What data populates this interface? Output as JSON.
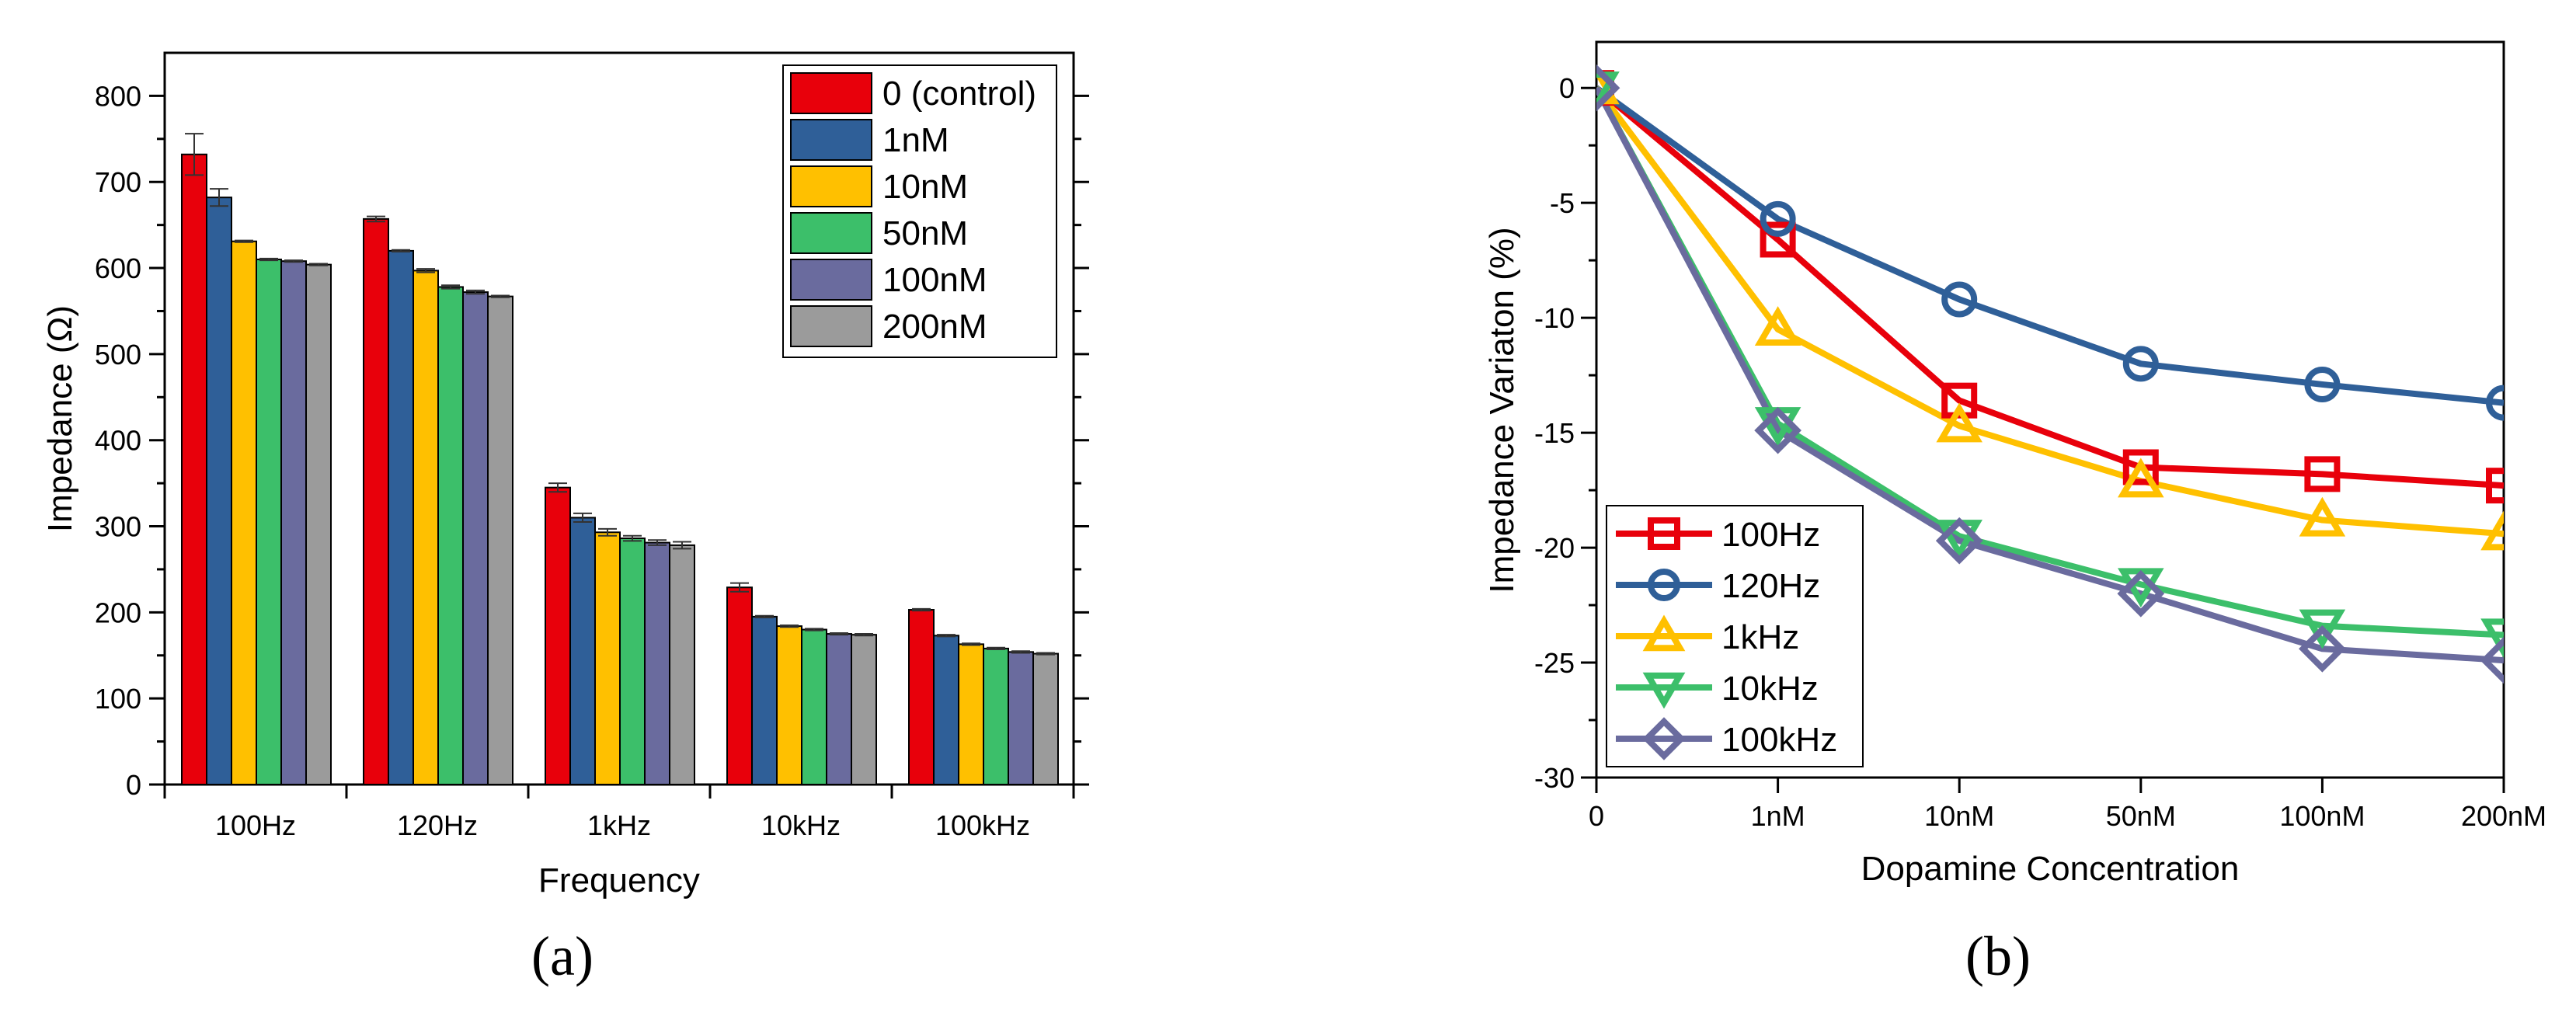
{
  "chart_data": [
    {
      "type": "bar",
      "panel": "(a)",
      "xlabel": "Frequency",
      "ylabel": "Impedance (Ω)",
      "ylim": [
        0,
        850
      ],
      "yticks": [
        0,
        100,
        200,
        300,
        400,
        500,
        600,
        700,
        800
      ],
      "categories": [
        "100Hz",
        "120Hz",
        "1kHz",
        "10kHz",
        "100kHz"
      ],
      "legend_position": "top-right",
      "series": [
        {
          "name": "0 (control)",
          "color": "#e8000b",
          "values": [
            732,
            657,
            345,
            229,
            203
          ],
          "errors": [
            24,
            3,
            5,
            5,
            1
          ]
        },
        {
          "name": "1nM",
          "color": "#2f5f98",
          "values": [
            682,
            620,
            310,
            195,
            173
          ],
          "errors": [
            10,
            1,
            5,
            1,
            1
          ]
        },
        {
          "name": "10nM",
          "color": "#ffc000",
          "values": [
            631,
            597,
            293,
            184,
            163
          ],
          "errors": [
            1,
            2,
            4,
            1,
            1
          ]
        },
        {
          "name": "50nM",
          "color": "#3cbf6a",
          "values": [
            610,
            578,
            286,
            180,
            158
          ],
          "errors": [
            1,
            2,
            3,
            1,
            1
          ]
        },
        {
          "name": "100nM",
          "color": "#6a6b9e",
          "values": [
            608,
            572,
            281,
            175,
            154
          ],
          "errors": [
            1,
            2,
            3,
            1,
            1
          ]
        },
        {
          "name": "200nM",
          "color": "#9b9b9b",
          "values": [
            604,
            567,
            278,
            174,
            152
          ],
          "errors": [
            1,
            1,
            4,
            1,
            1
          ]
        }
      ]
    },
    {
      "type": "line",
      "panel": "(b)",
      "xlabel": "Dopamine Concentration",
      "ylabel": "Impedance Variaton (%)",
      "categories": [
        "0",
        "1nM",
        "10nM",
        "50nM",
        "100nM",
        "200nM"
      ],
      "ylim": [
        -30,
        2
      ],
      "yticks": [
        0,
        -5,
        -10,
        -15,
        -20,
        -25,
        -30
      ],
      "legend_position": "bottom-left",
      "series": [
        {
          "name": "100Hz",
          "color": "#e8000b",
          "marker": "square",
          "values": [
            0,
            -6.6,
            -13.6,
            -16.5,
            -16.8,
            -17.3
          ]
        },
        {
          "name": "120Hz",
          "color": "#2f5f98",
          "marker": "circle",
          "values": [
            0,
            -5.7,
            -9.2,
            -12.0,
            -12.9,
            -13.7
          ]
        },
        {
          "name": "1kHz",
          "color": "#ffc000",
          "marker": "triangle-up",
          "values": [
            0,
            -10.5,
            -14.7,
            -17.1,
            -18.8,
            -19.4
          ]
        },
        {
          "name": "10kHz",
          "color": "#3cbf6a",
          "marker": "triangle-down",
          "values": [
            0,
            -14.6,
            -19.5,
            -21.6,
            -23.4,
            -23.8
          ]
        },
        {
          "name": "100kHz",
          "color": "#6a6b9e",
          "marker": "diamond",
          "values": [
            0,
            -14.9,
            -19.7,
            -22.0,
            -24.4,
            -24.9
          ]
        }
      ]
    }
  ]
}
